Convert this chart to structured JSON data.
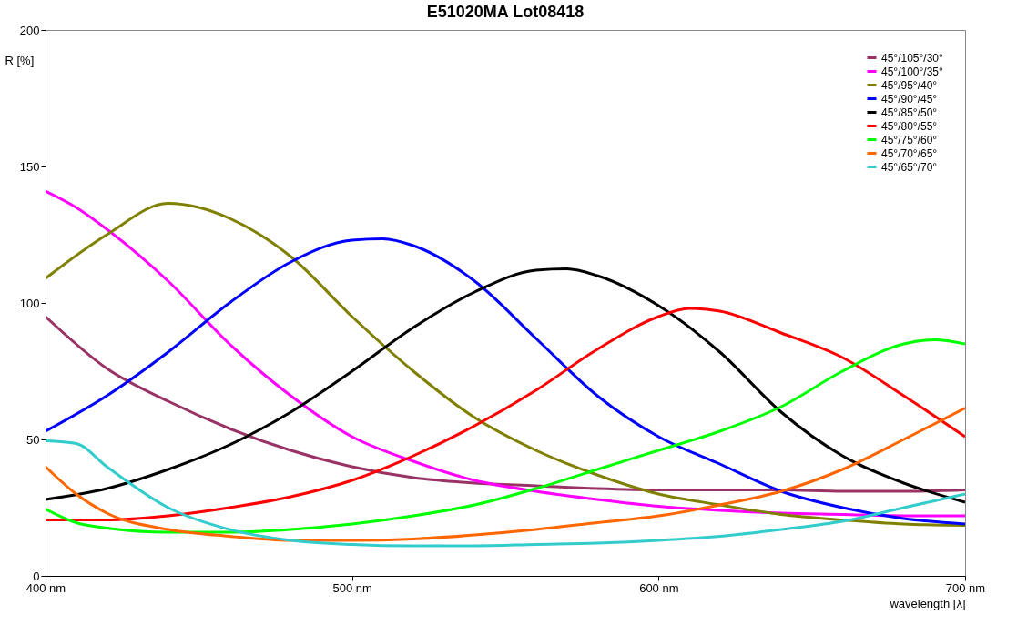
{
  "chart_data": {
    "type": "line",
    "title": "E51020MA Lot08418",
    "xlabel": "wavelength  [λ]",
    "ylabel": "R [%]",
    "xlim": [
      400,
      700
    ],
    "xticks": [
      {
        "value": 400,
        "label": "400 nm"
      },
      {
        "value": 500,
        "label": "500 nm"
      },
      {
        "value": 600,
        "label": "600 nm"
      },
      {
        "value": 700,
        "label": "700 nm"
      }
    ],
    "ylim": [
      0,
      200
    ],
    "yticks": [
      0,
      50,
      100,
      150,
      200
    ],
    "grid": false,
    "legend": "top right",
    "marker": "none",
    "line_style": "solid",
    "series": [
      {
        "name": "45°/105°/30°",
        "color": "#993366",
        "x": [
          400,
          420,
          440,
          460,
          480,
          500,
          520,
          540,
          560,
          580,
          600,
          620,
          640,
          660,
          680,
          700
        ],
        "values": [
          95,
          76,
          64,
          54,
          46,
          40,
          36,
          34,
          33,
          32,
          31.5,
          31.5,
          31.5,
          31,
          31,
          31.5
        ]
      },
      {
        "name": "45°/100°/35°",
        "color": "#ff00ff",
        "x": [
          400,
          410,
          420,
          440,
          460,
          480,
          500,
          520,
          540,
          560,
          580,
          600,
          620,
          640,
          660,
          680,
          700
        ],
        "values": [
          141,
          135,
          127,
          108,
          85,
          66,
          51,
          42,
          35,
          31,
          28,
          25.5,
          24,
          23,
          22.5,
          22,
          22
        ]
      },
      {
        "name": "45°/95°/40°",
        "color": "#808000",
        "x": [
          400,
          420,
          440,
          450,
          460,
          480,
          500,
          520,
          540,
          560,
          580,
          600,
          620,
          640,
          660,
          680,
          700
        ],
        "values": [
          109,
          125,
          136.5,
          135,
          131,
          117,
          95,
          75,
          58,
          46,
          37,
          30,
          26,
          22.5,
          20.5,
          19,
          18.5
        ]
      },
      {
        "name": "45°/90°/45°",
        "color": "#0000ff",
        "x": [
          400,
          420,
          440,
          460,
          480,
          500,
          510,
          520,
          540,
          560,
          580,
          600,
          620,
          640,
          660,
          680,
          700
        ],
        "values": [
          53,
          66,
          82,
          100,
          115,
          123,
          123.5,
          121,
          108,
          87,
          66,
          51,
          41,
          31,
          25,
          21,
          19
        ]
      },
      {
        "name": "45°/85°/50°",
        "color": "#000000",
        "x": [
          400,
          420,
          440,
          460,
          480,
          500,
          520,
          540,
          560,
          570,
          580,
          600,
          620,
          640,
          660,
          680,
          700
        ],
        "values": [
          28,
          32,
          39,
          48,
          60,
          75,
          91,
          104,
          112,
          112.5,
          110,
          99,
          82,
          60,
          44,
          34,
          27
        ]
      },
      {
        "name": "45°/80°/55°",
        "color": "#ff0000",
        "x": [
          400,
          420,
          440,
          460,
          480,
          500,
          520,
          540,
          560,
          580,
          600,
          610,
          620,
          640,
          660,
          680,
          700
        ],
        "values": [
          20.5,
          20.5,
          22,
          25,
          29,
          35,
          44,
          55,
          68,
          83,
          95,
          98,
          97,
          89,
          80,
          66,
          51
        ]
      },
      {
        "name": "45°/75°/60°",
        "color": "#00ff00",
        "x": [
          400,
          410,
          420,
          440,
          460,
          480,
          500,
          520,
          540,
          560,
          580,
          600,
          620,
          640,
          660,
          680,
          690,
          700
        ],
        "values": [
          24.5,
          19.5,
          17.5,
          16,
          16,
          17,
          19,
          22,
          26,
          32,
          39,
          46,
          53,
          62,
          75,
          85,
          86.5,
          85
        ]
      },
      {
        "name": "45°/70°/65°",
        "color": "#ff6600",
        "x": [
          400,
          410,
          420,
          440,
          460,
          480,
          500,
          520,
          540,
          560,
          580,
          600,
          620,
          640,
          660,
          680,
          700
        ],
        "values": [
          40,
          30,
          23,
          17,
          14.5,
          13,
          13,
          13.5,
          15,
          17,
          19.5,
          22,
          26,
          31,
          39,
          50,
          61.5
        ]
      },
      {
        "name": "45°/65°/70°",
        "color": "#33cccc",
        "x": [
          400,
          410,
          420,
          440,
          460,
          480,
          500,
          520,
          540,
          560,
          580,
          600,
          620,
          640,
          660,
          680,
          700
        ],
        "values": [
          49.5,
          48.5,
          40,
          25,
          17,
          13,
          11.5,
          11,
          11,
          11.5,
          12,
          13,
          14.5,
          17,
          20,
          25,
          30
        ]
      }
    ]
  }
}
